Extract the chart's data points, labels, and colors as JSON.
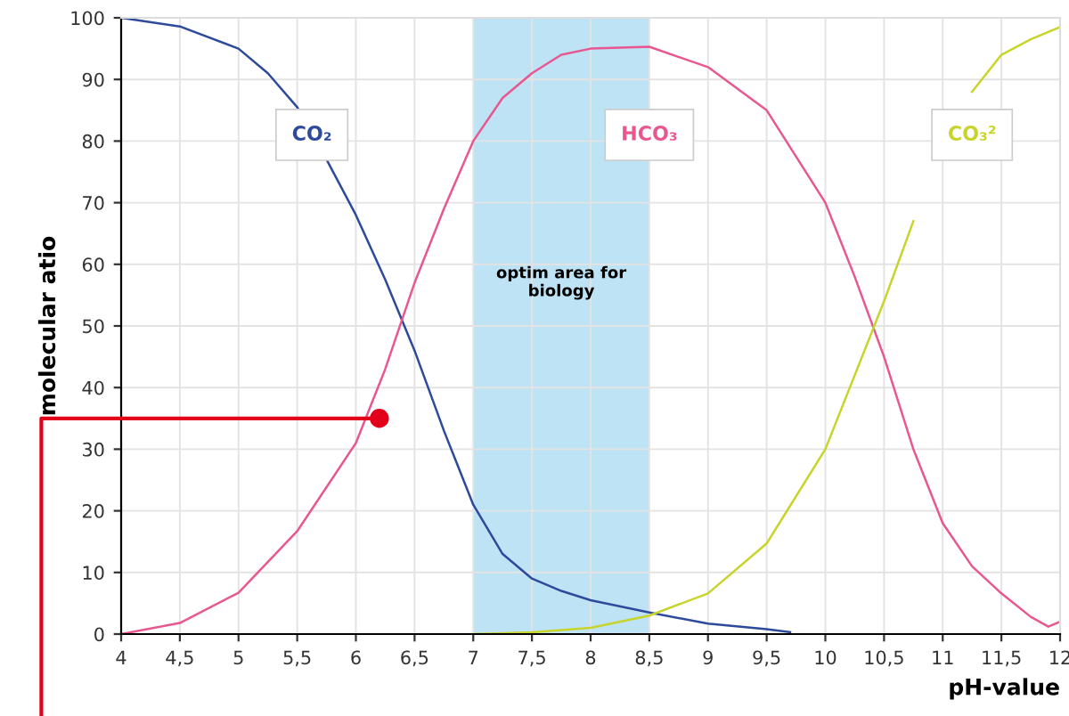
{
  "chart_data": {
    "type": "line",
    "xlabel": "pH-value",
    "ylabel": "molecular atio",
    "xlim": [
      4,
      12
    ],
    "ylim": [
      0,
      100
    ],
    "xticks": [
      4,
      {
        "value": 4.5,
        "label": "4,5"
      },
      5,
      {
        "value": 5.5,
        "label": "5,5"
      },
      6,
      {
        "value": 6.5,
        "label": "6,5"
      },
      7,
      {
        "value": 7.5,
        "label": "7,5"
      },
      8,
      {
        "value": 8.5,
        "label": "8,5"
      },
      9,
      {
        "value": 9.5,
        "label": "9,5"
      },
      10,
      {
        "value": 10.5,
        "label": "10,5"
      },
      11,
      {
        "value": 11.5,
        "label": "11,5"
      },
      12
    ],
    "yticks": [
      0,
      10,
      20,
      30,
      40,
      50,
      60,
      70,
      80,
      90,
      100
    ],
    "grid": true,
    "legend": false,
    "marker": "none",
    "line_style": "solid",
    "series": [
      {
        "name": "CO₂",
        "color": "#2e4a9a",
        "x": [
          4,
          4.5,
          5,
          5.25,
          5.5,
          5.75,
          6,
          6.25,
          6.5,
          6.75,
          7,
          7.25,
          7.5,
          7.75,
          8,
          8.5,
          9,
          9.5,
          9.7
        ],
        "values": [
          100,
          98.6,
          95,
          91,
          85.5,
          77,
          68,
          57.5,
          46,
          33,
          21,
          13,
          9,
          7,
          5.5,
          3.5,
          1.7,
          0.8,
          0.3
        ]
      },
      {
        "name": "HCO₃",
        "color": "#e8578f",
        "x": [
          4,
          4.5,
          5,
          5.5,
          6,
          6.25,
          6.5,
          6.75,
          7,
          7.25,
          7.5,
          7.75,
          8,
          8.5,
          9,
          9.5,
          10,
          10.25,
          10.5,
          10.75,
          11,
          11.25,
          11.5,
          11.75,
          11.9,
          12
        ],
        "values": [
          0,
          1.8,
          6.7,
          16.7,
          31,
          43,
          57,
          69,
          80,
          87,
          91,
          94,
          95,
          95.3,
          92,
          85,
          70,
          58,
          45,
          30,
          18,
          11,
          6.6,
          2.8,
          1.2,
          2
        ]
      },
      {
        "name": "CO₃²",
        "color": "#c8d42a",
        "x": [
          7,
          7.5,
          8,
          8.5,
          9,
          9.5,
          10,
          10.25,
          10.5,
          10.75,
          11,
          11.25,
          11.5,
          11.75,
          12
        ],
        "values": [
          0,
          0.3,
          1,
          3,
          6.6,
          14.7,
          30,
          42,
          54,
          67,
          null,
          88,
          94,
          96.5,
          98.5
        ]
      },
      {
        "color": "#e2001a",
        "x": [
          6.2,
          4
        ],
        "values": [
          35,
          35
        ]
      },
      {
        "type": "scatter",
        "marker": "circle",
        "color": "#e2001a",
        "x": [
          6.2
        ],
        "values": [
          35
        ]
      }
    ],
    "bands": [
      {
        "axis": "x",
        "from": 7,
        "to": 8.5,
        "label": "optim area for\nbiology",
        "color": "#bde3f5"
      }
    ]
  }
}
